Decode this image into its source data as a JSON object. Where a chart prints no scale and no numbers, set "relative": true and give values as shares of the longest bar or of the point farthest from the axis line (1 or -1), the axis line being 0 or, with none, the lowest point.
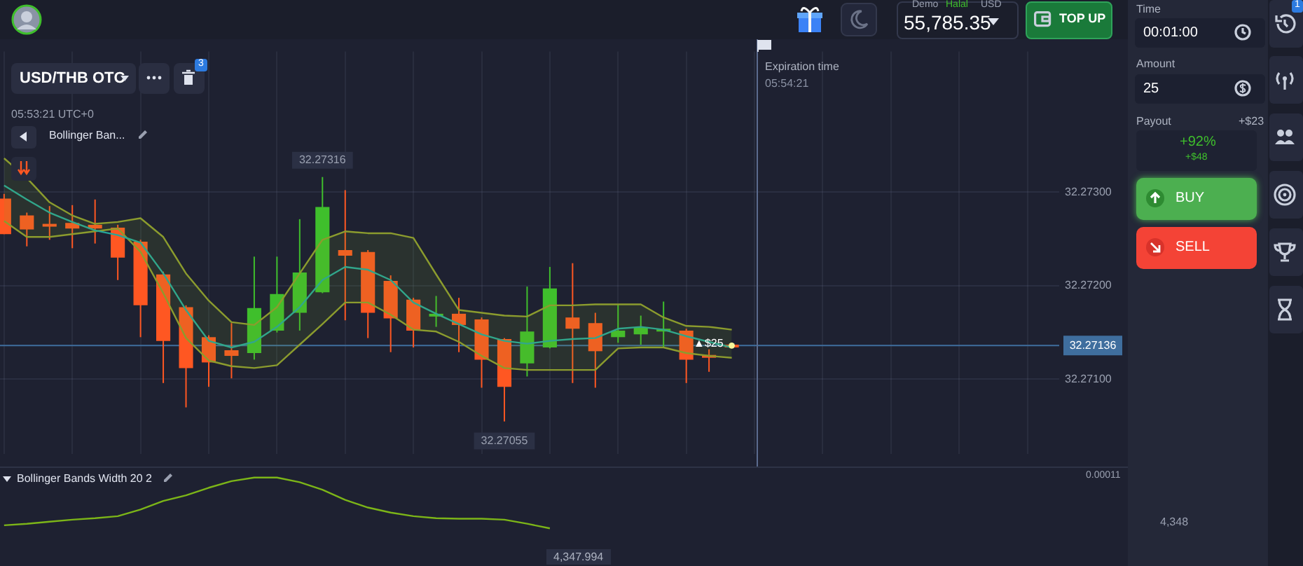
{
  "chart_data": [
    {
      "type": "candlestick",
      "categories": [
        null,
        null,
        null,
        null,
        null,
        null,
        null,
        null,
        null,
        null,
        null,
        null,
        null,
        null,
        null,
        null,
        null,
        null,
        null,
        null,
        null,
        null,
        null,
        null,
        null,
        null,
        null,
        null,
        null,
        null,
        null,
        null,
        null
      ],
      "ohlc": [
        [
          32.27293,
          32.27298,
          32.27255,
          32.27255
        ],
        [
          32.27275,
          32.27278,
          32.27242,
          32.2726
        ],
        [
          32.27266,
          32.27285,
          32.27249,
          32.27265
        ],
        [
          32.27267,
          32.27286,
          32.2724,
          32.27261
        ],
        [
          32.27265,
          32.27292,
          32.27245,
          32.27261
        ],
        [
          32.27262,
          32.27265,
          32.27206,
          32.2723
        ],
        [
          32.27247,
          32.27249,
          32.27145,
          32.27179
        ],
        [
          32.27212,
          32.27215,
          32.27096,
          32.27141
        ],
        [
          32.27177,
          32.27179,
          32.2707,
          32.27112
        ],
        [
          32.27145,
          32.27147,
          32.27092,
          32.27118
        ],
        [
          32.27131,
          32.2716,
          32.27101,
          32.27125
        ],
        [
          32.27128,
          32.27231,
          32.27121,
          32.27176
        ],
        [
          32.27152,
          32.27231,
          32.2715,
          32.27191
        ],
        [
          32.27171,
          32.27271,
          32.27152,
          32.27214
        ],
        [
          32.27193,
          32.27316,
          32.27192,
          32.27284
        ],
        [
          32.27238,
          32.27302,
          32.27163,
          32.27232
        ],
        [
          32.27236,
          32.27238,
          32.27144,
          32.27171
        ],
        [
          32.27205,
          32.27211,
          32.27129,
          32.27165
        ],
        [
          32.27185,
          32.27187,
          32.27134,
          32.27152
        ],
        [
          32.27169,
          32.27189,
          32.27156,
          32.2717
        ],
        [
          32.2717,
          32.27187,
          32.27129,
          32.27158
        ],
        [
          32.27164,
          32.27166,
          32.27091,
          32.27121
        ],
        [
          32.27143,
          32.27144,
          32.27055,
          32.27092
        ],
        [
          32.27117,
          32.27199,
          32.27103,
          32.27151
        ],
        [
          32.27134,
          32.2722,
          32.27133,
          32.27197
        ],
        [
          32.27166,
          32.27224,
          32.27096,
          32.27154
        ],
        [
          32.2716,
          32.27171,
          32.27091,
          32.2713
        ],
        [
          32.27145,
          32.2718,
          32.27139,
          32.27152
        ],
        [
          32.27148,
          32.27168,
          32.27137,
          32.27155
        ],
        [
          32.27153,
          32.27183,
          32.27134,
          32.27154
        ],
        [
          32.27152,
          32.27154,
          32.27096,
          32.27121
        ],
        [
          32.27126,
          32.27132,
          32.27108,
          32.27123
        ],
        [
          32.27137,
          32.27138,
          32.27135,
          32.27136
        ]
      ],
      "colors": [
        "#ff5722",
        "#ff5722",
        "#ff5722",
        "#ff5722",
        "#ff5722",
        "#ff5722",
        "#ff5722",
        "#ff5722",
        "#ff5722",
        "#ff5722",
        "#ff5722",
        "#3fbf2c",
        "#3fbf2c",
        "#3fbf2c",
        "#3fbf2c",
        "#ff5722",
        "#ff5722",
        "#ff5722",
        "#ff5722",
        "#3fbf2c",
        "#ff5722",
        "#ff5722",
        "#ff5722",
        "#3fbf2c",
        "#3fbf2c",
        "#ff5722",
        "#ff5722",
        "#3fbf2c",
        "#3fbf2c",
        "#3fbf2c",
        "#ff5722",
        "#ff5722",
        "#ff5722"
      ],
      "series": [
        {
          "type": "line",
          "color": "#26a69a",
          "values": [
            32.27307,
            32.27292,
            32.27278,
            32.27268,
            32.27259,
            32.27254,
            32.27246,
            32.27213,
            32.27174,
            32.27141,
            32.27134,
            32.2714,
            32.27156,
            32.27177,
            32.27206,
            32.2722,
            32.27217,
            32.27206,
            32.27182,
            32.2717,
            32.27159,
            32.27148,
            32.27141,
            32.27138,
            32.27141,
            32.27143,
            32.27144,
            32.27154,
            32.27156,
            32.27153,
            32.27146,
            32.2714,
            32.27134
          ],
          "lower": [
            32.27269,
            32.27252,
            32.27252,
            32.27255,
            32.27258,
            32.27261,
            32.27236,
            32.27192,
            32.27144,
            32.2712,
            32.27114,
            32.27112,
            32.27115,
            32.27137,
            32.27159,
            32.27182,
            32.27182,
            32.27169,
            32.27153,
            32.27151,
            32.2714,
            32.27125,
            32.27112,
            32.2711,
            32.2711,
            32.2711,
            32.2711,
            32.27133,
            32.27134,
            32.27134,
            32.27128,
            32.27125,
            32.27123
          ],
          "upper": [
            32.27336,
            32.27315,
            32.27289,
            32.27275,
            32.27266,
            32.27268,
            32.27272,
            32.27252,
            32.27213,
            32.27184,
            32.27161,
            32.27158,
            32.27177,
            32.27213,
            32.27249,
            32.27258,
            32.27256,
            32.27256,
            32.27251,
            32.27212,
            32.27174,
            32.27171,
            32.27168,
            32.27167,
            32.27179,
            32.27179,
            32.2718,
            32.2718,
            32.2718,
            32.27166,
            32.27157,
            32.27156,
            32.27153
          ]
        },
        {
          "type": "line",
          "color": "#8d9b2f",
          "values": [
            32.27269,
            32.27252,
            32.27252,
            32.27255,
            32.27258,
            32.27261,
            32.27236,
            32.27192,
            32.27144,
            32.2712,
            32.27114,
            32.27112,
            32.27115,
            32.27137,
            32.27159,
            32.27182,
            32.27182,
            32.27169,
            32.27153,
            32.27151,
            32.2714,
            32.27125,
            32.27112,
            32.2711,
            32.2711,
            32.2711,
            32.2711,
            32.27133,
            32.27134,
            32.27134,
            32.27128,
            32.27125,
            32.27123
          ]
        },
        {
          "type": "line",
          "color": "#8d9b2f",
          "values": [
            32.27336,
            32.27315,
            32.27289,
            32.27275,
            32.27266,
            32.27268,
            32.27272,
            32.27252,
            32.27213,
            32.27184,
            32.27161,
            32.27158,
            32.27177,
            32.27213,
            32.27249,
            32.27258,
            32.27256,
            32.27256,
            32.27251,
            32.27212,
            32.27174,
            32.27171,
            32.27168,
            32.27167,
            32.27179,
            32.27179,
            32.2718,
            32.2718,
            32.2718,
            32.27166,
            32.27157,
            32.27156,
            32.27153
          ]
        }
      ],
      "ylim": [
        32.2702,
        32.2745
      ],
      "yticks": [
        {
          "value": 32.271,
          "label": "32.27100"
        },
        {
          "value": 32.272,
          "label": "32.27200"
        },
        {
          "value": 32.273,
          "label": "32.27300"
        }
      ],
      "grid": true,
      "tick_labels": "y",
      "marker": "none",
      "ref_lines": [
        {
          "axis": "y",
          "value": 32.27136,
          "label": "32.27136",
          "color": "#3f6e9e"
        }
      ],
      "annotations": [
        "USD/THB OTC",
        "05:53:21 UTC+0",
        "Bollinger Ban...",
        "Expiration time",
        "05:54:21",
        "Demo",
        "Halal",
        "USD",
        "55,785.35",
        "TOP UP",
        "Time",
        "00:01:00",
        "Amount",
        "25",
        "Payout",
        "+$23",
        "+92%",
        "+$48",
        "BUY",
        "SELL",
        "3",
        "1",
        "▲$25",
        {
          "text": "32.27316",
          "y": 32.27316
        },
        {
          "text": "32.27055",
          "y": 32.27055
        }
      ]
    },
    {
      "type": "line",
      "title": "Bollinger Bands Width 20 2",
      "relative": true,
      "marker": "none",
      "color": "#7cb518",
      "categories": [
        null,
        null,
        null,
        null,
        null,
        null,
        null,
        null,
        null,
        null,
        null,
        null,
        null,
        null,
        null,
        null,
        null,
        null,
        null,
        null,
        null,
        null,
        null,
        null,
        null,
        null,
        null,
        null,
        null,
        null,
        null,
        null,
        null
      ],
      "values": [
        0.06,
        0.09,
        0.13,
        0.17,
        0.2,
        0.24,
        0.37,
        0.54,
        0.65,
        0.8,
        0.93,
        1,
        1,
        0.91,
        0.76,
        0.56,
        0.41,
        0.31,
        0.24,
        0.2,
        0.19,
        0.19,
        0.17,
        0.09,
        0,
        null,
        null,
        null,
        null,
        null,
        null,
        null,
        null
      ],
      "annotations": [
        "0.00011",
        "4,348",
        "4,347.994"
      ]
    }
  ]
}
